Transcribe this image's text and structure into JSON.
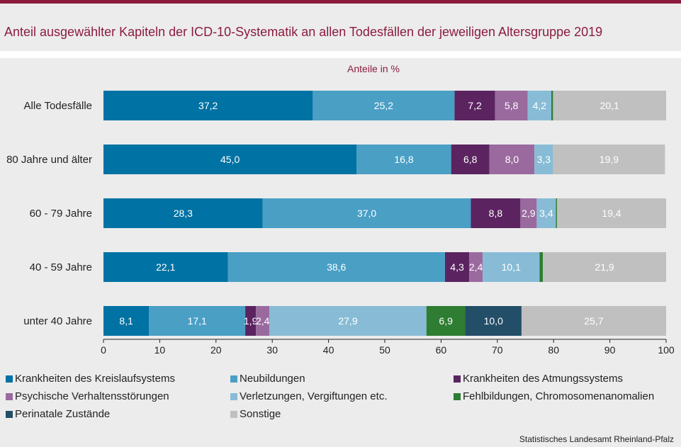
{
  "title": "Anteil ausgewählter Kapiteln der ICD-10-Systematik an allen Todesfällen der jeweiligen Altersgruppe 2019",
  "source": "Statistisches Landesamt Rheinland-Pfalz",
  "colors": {
    "accent": "#8c1c3e",
    "background": "#ececec"
  },
  "chart_data": {
    "type": "bar",
    "orientation": "horizontal",
    "stacked": true,
    "subtitle": "Anteile in %",
    "categories": [
      "Alle Todesfälle",
      "80 Jahre und älter",
      "60 - 79 Jahre",
      "40 - 59 Jahre",
      "unter 40 Jahre"
    ],
    "xlim": [
      0,
      100
    ],
    "xticks": [
      0,
      10,
      20,
      30,
      40,
      50,
      60,
      70,
      80,
      90,
      100
    ],
    "legend_position": "bottom",
    "series": [
      {
        "name": "Krankheiten des Kreislaufsystems",
        "color": "#0072a3",
        "values": [
          37.2,
          45.0,
          28.3,
          22.1,
          8.1
        ],
        "labels": [
          "37,2",
          "45,0",
          "28,3",
          "22,1",
          "8,1"
        ]
      },
      {
        "name": "Neubildungen",
        "color": "#4a9fc5",
        "values": [
          25.2,
          16.8,
          37.0,
          38.6,
          17.1
        ],
        "labels": [
          "25,2",
          "16,8",
          "37,0",
          "38,6",
          "17,1"
        ]
      },
      {
        "name": "Krankheiten des Atmungssystems",
        "color": "#5b2460",
        "values": [
          7.2,
          6.8,
          8.8,
          4.3,
          1.9
        ],
        "labels": [
          "7,2",
          "6,8",
          "8,8",
          "4,3",
          "1,9"
        ]
      },
      {
        "name": "Psychische Verhaltensstörungen",
        "color": "#9a6a9e",
        "values": [
          5.8,
          8.0,
          2.9,
          2.4,
          2.4
        ],
        "labels": [
          "5,8",
          "8,0",
          "2,9",
          "2,4",
          "2,4"
        ]
      },
      {
        "name": "Verletzungen, Vergiftungen etc.",
        "color": "#88bcd6",
        "values": [
          4.2,
          3.3,
          3.4,
          10.1,
          27.9
        ],
        "labels": [
          "4,2",
          "3,3",
          "3,4",
          "10,1",
          "27,9"
        ]
      },
      {
        "name": "Fehlbildungen, Chromosomenanomalien",
        "color": "#2e7d32",
        "values": [
          0.3,
          0.0,
          0.2,
          0.6,
          6.9
        ],
        "labels": [
          "",
          "",
          "",
          "",
          "6,9"
        ]
      },
      {
        "name": "Perinatale Zustände",
        "color": "#234e68",
        "values": [
          0.0,
          0.0,
          0.0,
          0.0,
          10.0
        ],
        "labels": [
          "",
          "",
          "",
          "",
          "10,0"
        ]
      },
      {
        "name": "Sonstige",
        "color": "#c0c0c0",
        "values": [
          20.1,
          19.9,
          19.4,
          21.9,
          25.7
        ],
        "labels": [
          "20,1",
          "19,9",
          "19,4",
          "21,9",
          "25,7"
        ]
      }
    ]
  }
}
